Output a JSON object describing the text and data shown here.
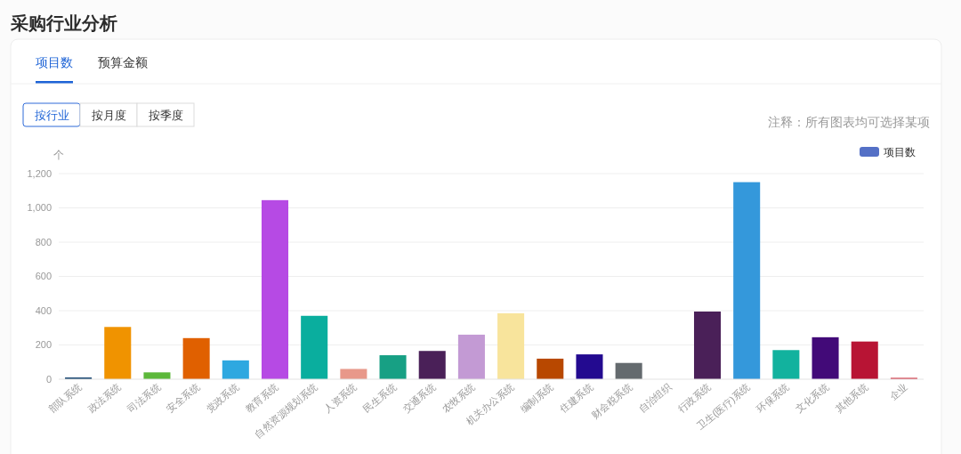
{
  "chart_data": {
    "type": "bar",
    "title": "采购行业分析",
    "annotations": [
      "项目数",
      "预算金额",
      "按行业",
      "按月度",
      "按季度",
      "注释：所有图表均可选择某项"
    ],
    "ylabel": "个",
    "categories": [
      "部队系统",
      "政法系统",
      "司法系统",
      "安全系统",
      "党政系统",
      "教育系统",
      "自然资源规划系统",
      "人资系统",
      "民生系统",
      "交通系统",
      "农牧系统",
      "机关办公系统",
      "编制系统",
      "住建系统",
      "财会税系统",
      "自治组织",
      "行政系统",
      "卫生(医疗)系统",
      "环保系统",
      "文化系统",
      "其他系统",
      "企业"
    ],
    "series": [
      {
        "name": "项目数",
        "color": "#5470c6",
        "values": [
          10,
          305,
          40,
          240,
          110,
          1045,
          370,
          60,
          140,
          165,
          260,
          385,
          120,
          145,
          95,
          0,
          395,
          1150,
          170,
          245,
          220,
          8
        ],
        "colors": [
          "#0d3e6b",
          "#f09300",
          "#5cb83a",
          "#e06000",
          "#2ea8e0",
          "#b64ae4",
          "#0aae9e",
          "#e8988a",
          "#17a084",
          "#4a2058",
          "#c39ad4",
          "#f8e49c",
          "#b84800",
          "#230a90",
          "#646a6e",
          "#7f8c8d",
          "#4a2058",
          "#3498db",
          "#12b29e",
          "#420a78",
          "#b81434",
          "#d03040"
        ]
      }
    ],
    "ylim": [
      0,
      1200
    ],
    "yticks": [
      0,
      200,
      400,
      600,
      800,
      {
        "value": 1000,
        "label": "1,000"
      },
      {
        "value": 1200,
        "label": "1,200"
      }
    ],
    "grid": "y",
    "legend": "top right"
  }
}
